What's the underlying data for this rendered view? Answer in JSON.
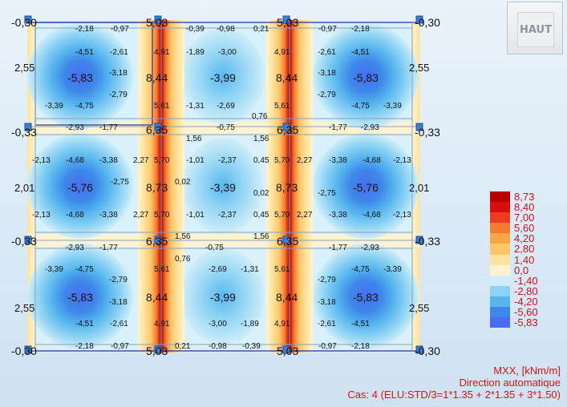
{
  "view_button": {
    "label": "HAUT",
    "icon": "view-cube-icon"
  },
  "legend": {
    "scale": [
      {
        "value": "8,73",
        "color": "#b80000"
      },
      {
        "value": "8,40",
        "color": "#d80f0f"
      },
      {
        "value": "7,00",
        "color": "#f03a1e"
      },
      {
        "value": "5,60",
        "color": "#f77a32"
      },
      {
        "value": "4,20",
        "color": "#f9a647"
      },
      {
        "value": "2,80",
        "color": "#fbc76a"
      },
      {
        "value": "1,40",
        "color": "#fde39d"
      },
      {
        "value": "0,0",
        "color": "#fff3cf"
      },
      {
        "value": "-1,40",
        "color": "#cfeef9"
      },
      {
        "value": "-2,80",
        "color": "#8ed3f4"
      },
      {
        "value": "-4,20",
        "color": "#58b6ee"
      },
      {
        "value": "-5,60",
        "color": "#3d88ea"
      },
      {
        "value": "-5,83",
        "color": "#4a6cf0"
      }
    ],
    "quantity": "MXX, [kNm/m]",
    "direction": "Direction automatique",
    "load_case": "Cas: 4 (ELU:STD/3=1*1.35 + 2*1.35 + 3*1.50)"
  },
  "map": {
    "bands": [
      {
        "row": "top",
        "lines": [
          [
            "-0,30",
            "5,03",
            "5,03",
            "-0,30"
          ],
          [
            "-2,18",
            "-0,97",
            "-0,39",
            "-0,98",
            "0,21",
            "-0,97",
            "-2,18"
          ],
          [
            "-4,51",
            "-2,61",
            "4,91",
            "-1,89",
            "-3,00",
            "4,91",
            "-2,61",
            "-4,51"
          ],
          [
            "2,55",
            "-5,83",
            "8,44",
            "-3,99",
            "8,44",
            "-5,83",
            "2,55"
          ],
          [
            "-3,18",
            "-3,18"
          ],
          [
            "-2,79",
            "-2,79"
          ],
          [
            "-3,39",
            "-4,75",
            "5,61",
            "-1,31",
            "-2,69",
            "5,61",
            "-4,75",
            "-3,39"
          ],
          [
            "0,76"
          ],
          [
            "-2,93",
            "-1,77",
            "-0,75",
            "-1,77",
            "-2,93"
          ]
        ]
      },
      {
        "row": "middle",
        "lines": [
          [
            "-0,33",
            "6,35",
            "6,35",
            "-0,33"
          ],
          [
            "1,56",
            "1,56"
          ],
          [
            "-2,13",
            "-4,68",
            "-3,38",
            "2,27",
            "5,70",
            "-1,01",
            "-2,37",
            "0,45",
            "5,70",
            "2,27",
            "-3,38",
            "-4,68",
            "-2,13"
          ],
          [
            "-2,75",
            "0,02",
            "-2,75"
          ],
          [
            "2,01",
            "-5,76",
            "8,73",
            "-3,39",
            "0,02",
            "8,73",
            "-5,76",
            "2,01"
          ],
          [
            "-2,13",
            "-4,68",
            "-3,38",
            "2,27",
            "5,70",
            "-1,01",
            "-2,37",
            "0,45",
            "5,70",
            "2,27",
            "-3,38",
            "-4,68",
            "-2,13"
          ],
          [
            "1,56",
            "1,56"
          ],
          [
            "-0,33",
            "6,35",
            "6,35",
            "-0,33"
          ]
        ]
      },
      {
        "row": "bottom",
        "lines": [
          [
            "-2,93",
            "-1,77",
            "-0,75",
            "-1,77",
            "-2,93"
          ],
          [
            "0,76"
          ],
          [
            "-3,39",
            "-4,75",
            "5,61",
            "-2,69",
            "-1,31",
            "5,61",
            "-4,75",
            "-3,39"
          ],
          [
            "-2,79",
            "-2,79"
          ],
          [
            "2,55",
            "-5,83",
            "8,44",
            "-3,99",
            "8,44",
            "-5,83",
            "2,55"
          ],
          [
            "-3,18",
            "-3,18"
          ],
          [
            "-4,51",
            "-2,61",
            "4,91",
            "-3,00",
            "-1,89",
            "4,91",
            "-2,61",
            "-4,51"
          ],
          [
            "-0,30",
            "-2,18",
            "-0,97",
            "5,03",
            "0,21",
            "-0,98",
            "-0,39",
            "5,03",
            "-0,97",
            "-2,18",
            "-0,30"
          ]
        ]
      }
    ]
  }
}
